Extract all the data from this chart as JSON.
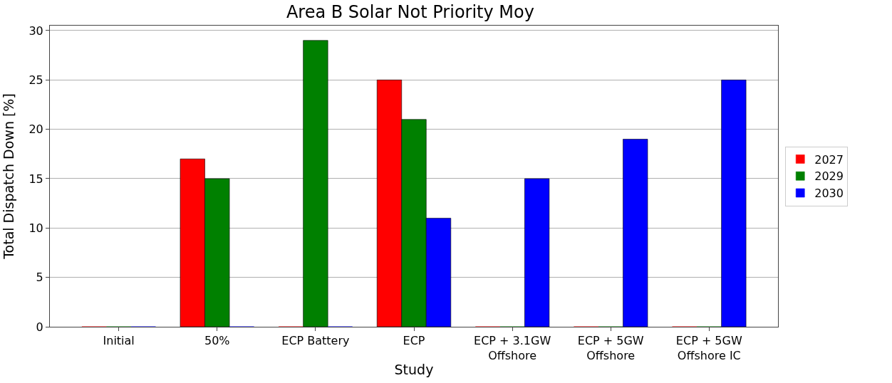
{
  "chart_data": {
    "type": "bar",
    "title": "Area B Solar Not Priority Moy",
    "xlabel": "Study",
    "ylabel": "Total Dispatch Down [%]",
    "categories": [
      "Initial",
      "50%",
      "ECP Battery",
      "ECP",
      "ECP + 3.1GW\nOffshore",
      "ECP + 5GW\nOffshore",
      "ECP + 5GW\nOffshore IC"
    ],
    "series": [
      {
        "name": "2027",
        "color": "#ff0000",
        "values": [
          0,
          17,
          0,
          25,
          0,
          0,
          0
        ]
      },
      {
        "name": "2029",
        "color": "#008000",
        "values": [
          0,
          15,
          29,
          21,
          0,
          0,
          0
        ]
      },
      {
        "name": "2030",
        "color": "#0000ff",
        "values": [
          0,
          0,
          0,
          11,
          15,
          19,
          25
        ]
      }
    ],
    "ylim": [
      0,
      30.5
    ],
    "yticks": [
      0,
      5,
      10,
      15,
      20,
      25,
      30
    ],
    "grid": "y",
    "legend": "right"
  }
}
